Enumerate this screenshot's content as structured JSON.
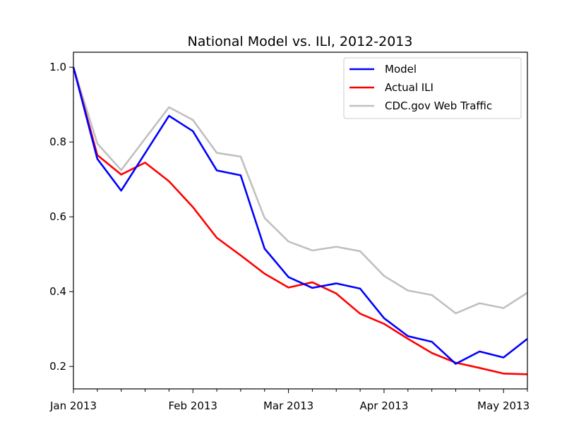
{
  "chart_data": {
    "type": "line",
    "title": "National Model vs. ILI, 2012-2013",
    "xlabel": "",
    "ylabel": "",
    "ylim": [
      0.14,
      1.04
    ],
    "x_range_weeks": [
      0,
      19
    ],
    "y_ticks": [
      {
        "value": 0.2,
        "label": "0.2"
      },
      {
        "value": 0.4,
        "label": "0.4"
      },
      {
        "value": 0.6,
        "label": "0.6"
      },
      {
        "value": 0.8,
        "label": "0.8"
      },
      {
        "value": 1.0,
        "label": "1.0"
      }
    ],
    "x_ticks": [
      {
        "week": 0,
        "label": "Jan 2013"
      },
      {
        "week": 5,
        "label": "Feb 2013"
      },
      {
        "week": 9,
        "label": "Mar 2013"
      },
      {
        "week": 13,
        "label": "Apr 2013"
      },
      {
        "week": 18,
        "label": "May 2013"
      }
    ],
    "x_minor_weeks": [
      1,
      2,
      3,
      4,
      6,
      7,
      8,
      10,
      11,
      12,
      14,
      15,
      16,
      17,
      19
    ],
    "legend_position": "top-right",
    "series": [
      {
        "name": "Model",
        "color": "#0000ff",
        "x": [
          0,
          1,
          2,
          3,
          4,
          5,
          6,
          7,
          8,
          9,
          10,
          11,
          12,
          13,
          14,
          15,
          16,
          17,
          18,
          19
        ],
        "values": [
          1.0,
          0.755,
          0.67,
          0.77,
          0.87,
          0.829,
          0.724,
          0.711,
          0.515,
          0.439,
          0.41,
          0.422,
          0.408,
          0.329,
          0.281,
          0.266,
          0.207,
          0.24,
          0.224,
          0.274
        ]
      },
      {
        "name": "Actual ILI",
        "color": "#ff0000",
        "x": [
          0,
          1,
          2,
          3,
          4,
          5,
          6,
          7,
          8,
          9,
          10,
          11,
          12,
          13,
          14,
          15,
          16,
          17,
          18,
          19
        ],
        "values": [
          1.0,
          0.765,
          0.713,
          0.745,
          0.695,
          0.626,
          0.544,
          0.497,
          0.448,
          0.411,
          0.425,
          0.395,
          0.341,
          0.314,
          0.274,
          0.236,
          0.21,
          0.196,
          0.181,
          0.179
        ]
      },
      {
        "name": "CDC.gov Web Traffic",
        "color": "#c0c0c0",
        "x": [
          0,
          1,
          2,
          3,
          4,
          5,
          6,
          7,
          8,
          9,
          10,
          11,
          12,
          13,
          14,
          15,
          16,
          17,
          18,
          19
        ],
        "values": [
          1.0,
          0.796,
          0.725,
          0.809,
          0.893,
          0.859,
          0.771,
          0.761,
          0.597,
          0.534,
          0.51,
          0.52,
          0.508,
          0.442,
          0.403,
          0.391,
          0.342,
          0.369,
          0.356,
          0.397
        ]
      }
    ]
  }
}
